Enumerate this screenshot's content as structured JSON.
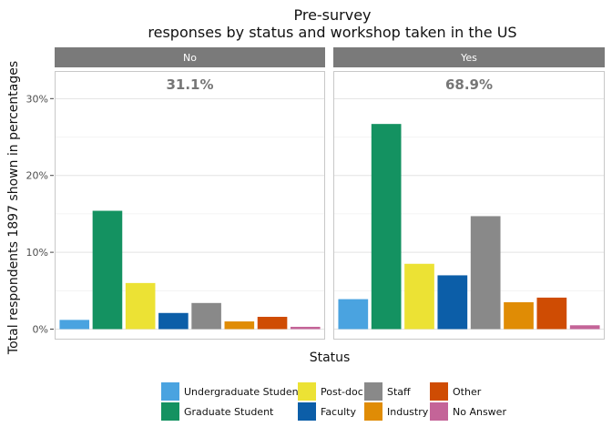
{
  "chart_data": {
    "type": "bar",
    "title_lines": [
      "Pre-survey",
      "responses by status and workshop taken in the US"
    ],
    "xlabel": "Status",
    "ylabel": "Total respondents 1897 shown in percentages",
    "ylim": [
      0,
      33
    ],
    "yticks": [
      0,
      10,
      20,
      30
    ],
    "ytick_labels": [
      "0%",
      "10%",
      "20%",
      "30%"
    ],
    "grid": true,
    "legend_position": "bottom",
    "categories": [
      "Undergraduate Student",
      "Graduate Student",
      "Post-doc",
      "Faculty",
      "Staff",
      "Industry",
      "Other",
      "No Answer"
    ],
    "colors": [
      "#4aa3e0",
      "#149261",
      "#ece234",
      "#0c5ea8",
      "#898989",
      "#e08c05",
      "#cf4c03",
      "#c46498"
    ],
    "panels": [
      {
        "strip": "No",
        "total_label": "31.1%",
        "values": [
          1.2,
          15.4,
          6.0,
          2.1,
          3.4,
          1.0,
          1.6,
          0.3
        ]
      },
      {
        "strip": "Yes",
        "total_label": "68.9%",
        "values": [
          3.9,
          26.7,
          8.5,
          7.0,
          14.7,
          3.5,
          4.1,
          0.5
        ]
      }
    ]
  }
}
